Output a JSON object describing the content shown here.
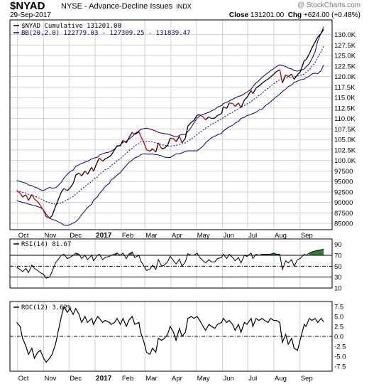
{
  "header": {
    "symbol": "$NYAD",
    "name": "NYSE - Advance-Decline Issues",
    "exchange": "INDX",
    "watermark": "@ StockCharts.com",
    "date": "29-Sep-2017",
    "close_label": "Close",
    "close_value": "131201.00",
    "chg_label": "Chg",
    "chg_value": "+624.00 (+0.48%)"
  },
  "colors": {
    "price_line": "#000000",
    "price_down": "#cc0000",
    "bands": "#000080",
    "grid": "#d0d0d0",
    "rsi_fill": "#2e7d32",
    "frame": "#000000"
  },
  "x_axis": {
    "months": [
      "Oct",
      "Nov",
      "Dec",
      "2017",
      "Feb",
      "Mar",
      "Apr",
      "May",
      "Jun",
      "Jul",
      "Aug",
      "Sep"
    ],
    "bold_labels": [
      "2017"
    ]
  },
  "chart_data": [
    {
      "type": "line",
      "title": "$NYAD Cumulative 131201.00",
      "legend": [
        {
          "name": "$NYAD Cumulative 131201.00",
          "color": "#000000"
        },
        {
          "name": "BB(20,2.0) 122779.03 - 127309.25 - 131839.47",
          "color": "#000080"
        }
      ],
      "legend_placement": "top-left",
      "ylim": [
        83500,
        133500
      ],
      "yticks": [
        85000,
        87500,
        90000,
        92500,
        95000,
        97500,
        100000,
        102500,
        105000,
        107500,
        110000,
        112500,
        115000,
        117500,
        120000,
        122500,
        125000,
        127500,
        130000
      ],
      "ytick_labels": [
        "85000",
        "87500",
        "90000",
        "92500",
        "95000",
        "97500",
        "100.0K",
        "102.5K",
        "105.0K",
        "107.5K",
        "110.0K",
        "112.5K",
        "115.0K",
        "117.5K",
        "120.0K",
        "122.5K",
        "125.0K",
        "127.5K",
        "130.0K"
      ],
      "grid": true,
      "x": [
        "2016-09-30",
        "2016-10-04",
        "2016-10-07",
        "2016-10-11",
        "2016-10-14",
        "2016-10-18",
        "2016-10-21",
        "2016-10-25",
        "2016-10-28",
        "2016-11-01",
        "2016-11-04",
        "2016-11-08",
        "2016-11-11",
        "2016-11-15",
        "2016-11-18",
        "2016-11-22",
        "2016-11-25",
        "2016-11-29",
        "2016-12-02",
        "2016-12-06",
        "2016-12-09",
        "2016-12-13",
        "2016-12-16",
        "2016-12-20",
        "2016-12-23",
        "2016-12-28",
        "2016-12-30",
        "2017-01-04",
        "2017-01-06",
        "2017-01-10",
        "2017-01-13",
        "2017-01-18",
        "2017-01-20",
        "2017-01-24",
        "2017-01-27",
        "2017-01-31",
        "2017-02-03",
        "2017-02-07",
        "2017-02-10",
        "2017-02-14",
        "2017-02-17",
        "2017-02-22",
        "2017-02-24",
        "2017-02-28",
        "2017-03-03",
        "2017-03-07",
        "2017-03-10",
        "2017-03-14",
        "2017-03-17",
        "2017-03-21",
        "2017-03-24",
        "2017-03-28",
        "2017-03-31",
        "2017-04-04",
        "2017-04-07",
        "2017-04-11",
        "2017-04-14",
        "2017-04-18",
        "2017-04-21",
        "2017-04-25",
        "2017-04-28",
        "2017-05-02",
        "2017-05-05",
        "2017-05-09",
        "2017-05-12",
        "2017-05-16",
        "2017-05-19",
        "2017-05-23",
        "2017-05-26",
        "2017-05-31",
        "2017-06-02",
        "2017-06-06",
        "2017-06-09",
        "2017-06-13",
        "2017-06-16",
        "2017-06-20",
        "2017-06-23",
        "2017-06-27",
        "2017-06-30",
        "2017-07-05",
        "2017-07-07",
        "2017-07-11",
        "2017-07-14",
        "2017-07-18",
        "2017-07-21",
        "2017-07-25",
        "2017-07-28",
        "2017-08-01",
        "2017-08-04",
        "2017-08-08",
        "2017-08-11",
        "2017-08-15",
        "2017-08-18",
        "2017-08-22",
        "2017-08-25",
        "2017-08-29",
        "2017-09-01",
        "2017-09-06",
        "2017-09-08",
        "2017-09-12",
        "2017-09-15",
        "2017-09-19",
        "2017-09-22",
        "2017-09-26",
        "2017-09-29"
      ],
      "series": [
        {
          "name": "$NYAD Cumulative",
          "values": [
            92800,
            92200,
            91300,
            91800,
            90500,
            91900,
            90800,
            90200,
            89300,
            88000,
            86600,
            86300,
            86800,
            89000,
            90500,
            92500,
            93300,
            92800,
            93400,
            94500,
            96500,
            97000,
            96300,
            97500,
            96700,
            98400,
            97400,
            99800,
            100600,
            99800,
            100400,
            100900,
            101300,
            102500,
            103500,
            103500,
            104800,
            104200,
            105400,
            106700,
            106200,
            106800,
            105800,
            104200,
            102500,
            102200,
            102800,
            102000,
            104200,
            102800,
            102900,
            103600,
            105300,
            105200,
            104500,
            105800,
            104200,
            105300,
            108200,
            109100,
            109500,
            110800,
            110900,
            110400,
            109700,
            110400,
            110000,
            110100,
            110700,
            111200,
            112800,
            112400,
            113700,
            113600,
            112900,
            113700,
            112600,
            114400,
            115000,
            116700,
            115900,
            117300,
            117700,
            118400,
            118900,
            119400,
            119900,
            120600,
            121200,
            121600,
            118500,
            120400,
            120000,
            120600,
            119300,
            120500,
            121000,
            123800,
            124000,
            125400,
            126800,
            128300,
            129400,
            130300,
            131201
          ]
        },
        {
          "name": "BB Upper",
          "values": [
            95200,
            95000,
            94800,
            94600,
            94200,
            94000,
            93700,
            93400,
            93000,
            92800,
            93200,
            93600,
            93400,
            93500,
            94000,
            94800,
            95800,
            96700,
            97300,
            97700,
            98600,
            99000,
            99300,
            99600,
            99800,
            100400,
            100500,
            100800,
            101300,
            101600,
            101800,
            102000,
            102200,
            102700,
            103300,
            103700,
            104300,
            104600,
            105100,
            105700,
            106400,
            107000,
            107400,
            107600,
            107700,
            107500,
            107300,
            107000,
            106700,
            106500,
            106400,
            106300,
            106100,
            105800,
            105600,
            106000,
            106200,
            106200,
            106900,
            107900,
            108900,
            110100,
            110600,
            111000,
            111200,
            111500,
            111800,
            112200,
            112700,
            113100,
            113600,
            113800,
            114200,
            114600,
            114900,
            115300,
            115400,
            115900,
            116300,
            117000,
            117600,
            118500,
            119000,
            119800,
            120300,
            120900,
            121400,
            121900,
            122400,
            122800,
            122600,
            122400,
            122000,
            121800,
            121400,
            121300,
            121400,
            121800,
            122300,
            123100,
            124200,
            126000,
            128500,
            130400,
            131839
          ]
        },
        {
          "name": "BB Mid",
          "values": [
            92800,
            92600,
            92400,
            92200,
            91900,
            91700,
            91500,
            91200,
            90900,
            90500,
            90200,
            89900,
            89700,
            89600,
            89700,
            89900,
            90200,
            90600,
            91000,
            91400,
            92000,
            92600,
            93200,
            93800,
            94300,
            95000,
            95500,
            96100,
            96700,
            97300,
            97800,
            98300,
            98800,
            99300,
            99900,
            100400,
            101100,
            101700,
            102300,
            102900,
            103500,
            104000,
            104400,
            104600,
            104600,
            104500,
            104400,
            104200,
            104000,
            103800,
            103600,
            103500,
            103400,
            103500,
            103600,
            103800,
            104000,
            104200,
            104600,
            105100,
            105600,
            106200,
            106700,
            107200,
            107700,
            108200,
            108600,
            109000,
            109400,
            109800,
            110300,
            110700,
            111100,
            111500,
            111900,
            112300,
            112700,
            113100,
            113500,
            114000,
            114400,
            115000,
            115500,
            116000,
            116600,
            117200,
            117700,
            118300,
            118800,
            119300,
            119500,
            119700,
            119800,
            119900,
            120000,
            120100,
            120300,
            120600,
            121000,
            121600,
            122400,
            123400,
            124600,
            125900,
            127309
          ]
        },
        {
          "name": "BB Lower",
          "values": [
            90400,
            90200,
            90000,
            89800,
            89600,
            89400,
            89300,
            89000,
            88800,
            88200,
            87200,
            86200,
            86000,
            85700,
            85400,
            85000,
            84600,
            84500,
            84700,
            85100,
            85400,
            86200,
            87100,
            88000,
            88800,
            89600,
            90500,
            91400,
            92100,
            93000,
            93800,
            94600,
            95400,
            95900,
            96500,
            97100,
            97900,
            98800,
            99500,
            100100,
            100600,
            101000,
            101400,
            101600,
            101500,
            101500,
            101500,
            101400,
            101300,
            101100,
            100800,
            100700,
            100700,
            101200,
            101600,
            101600,
            101800,
            102200,
            102300,
            102300,
            102300,
            102300,
            102800,
            103400,
            104200,
            104900,
            105400,
            105800,
            106100,
            106500,
            107000,
            107600,
            108000,
            108400,
            108900,
            109300,
            110000,
            110300,
            110700,
            111000,
            111200,
            111500,
            112000,
            112200,
            112900,
            113500,
            114000,
            114700,
            115200,
            115800,
            116400,
            117000,
            117600,
            118000,
            118600,
            118900,
            119200,
            119400,
            119700,
            120100,
            120600,
            120800,
            120700,
            121400,
            122779
          ]
        }
      ]
    },
    {
      "type": "line",
      "title": "RSI(14) 81.67",
      "ylim": [
        10,
        100
      ],
      "yticks": [
        10,
        30,
        50,
        70,
        90
      ],
      "reference_lines": [
        30,
        50,
        70
      ],
      "shaded_above": 70,
      "series": [
        {
          "name": "RSI(14)",
          "values": [
            48,
            44,
            40,
            46,
            38,
            52,
            46,
            42,
            38,
            35,
            28,
            30,
            40,
            56,
            62,
            70,
            72,
            64,
            66,
            70,
            74,
            72,
            64,
            70,
            62,
            70,
            60,
            70,
            72,
            62,
            66,
            68,
            70,
            72,
            74,
            70,
            74,
            64,
            72,
            76,
            66,
            70,
            60,
            50,
            42,
            45,
            52,
            44,
            62,
            50,
            52,
            58,
            68,
            60,
            54,
            63,
            50,
            58,
            73,
            70,
            70,
            74,
            66,
            60,
            56,
            62,
            58,
            58,
            64,
            66,
            72,
            64,
            72,
            66,
            60,
            66,
            56,
            70,
            68,
            74,
            64,
            72,
            70,
            72,
            72,
            72,
            72,
            74,
            72,
            72,
            44,
            60,
            56,
            62,
            50,
            62,
            64,
            72,
            70,
            74,
            76,
            78,
            79,
            80,
            81.67
          ]
        }
      ]
    },
    {
      "type": "line",
      "title": "ROC(12) 3.62%",
      "ylim": [
        -8.75,
        8.75
      ],
      "yticks": [
        -7.5,
        -5,
        -2.5,
        0,
        2.5,
        5,
        7.5
      ],
      "ytick_labels": [
        "-7.5",
        "-5.0",
        "-2.5",
        "0.0",
        "2.5",
        "5.0",
        "7.5"
      ],
      "reference_lines": [
        0
      ],
      "series": [
        {
          "name": "ROC(12)",
          "values": [
            3.5,
            2.5,
            -0.5,
            -2.5,
            -4.5,
            -3.0,
            -5.5,
            -4.0,
            -3.5,
            -5.5,
            -6.5,
            -5.5,
            -4.5,
            -2.0,
            1.0,
            5.0,
            7.5,
            6.0,
            7.0,
            5.5,
            7.0,
            5.5,
            3.5,
            5.0,
            3.5,
            4.5,
            3.0,
            5.0,
            4.5,
            3.5,
            4.0,
            3.5,
            3.0,
            3.5,
            4.5,
            3.0,
            4.5,
            2.5,
            4.0,
            5.0,
            3.0,
            3.5,
            1.0,
            -1.5,
            -4.0,
            -4.5,
            -3.0,
            -4.0,
            -0.5,
            -1.0,
            -0.5,
            0.5,
            2.5,
            1.0,
            -1.0,
            2.0,
            0.0,
            1.0,
            4.5,
            5.0,
            4.5,
            5.0,
            4.0,
            2.5,
            1.5,
            3.0,
            2.5,
            2.0,
            3.0,
            3.5,
            4.5,
            3.5,
            4.0,
            3.0,
            1.5,
            3.0,
            1.0,
            3.5,
            3.0,
            4.5,
            2.5,
            4.5,
            4.0,
            4.5,
            4.0,
            3.5,
            4.5,
            4.0,
            4.0,
            3.5,
            -1.5,
            0.5,
            -2.0,
            -0.5,
            -3.0,
            -3.5,
            -1.0,
            3.0,
            2.5,
            4.5,
            4.0,
            4.5,
            3.5,
            4.5,
            3.62
          ]
        }
      ]
    }
  ]
}
